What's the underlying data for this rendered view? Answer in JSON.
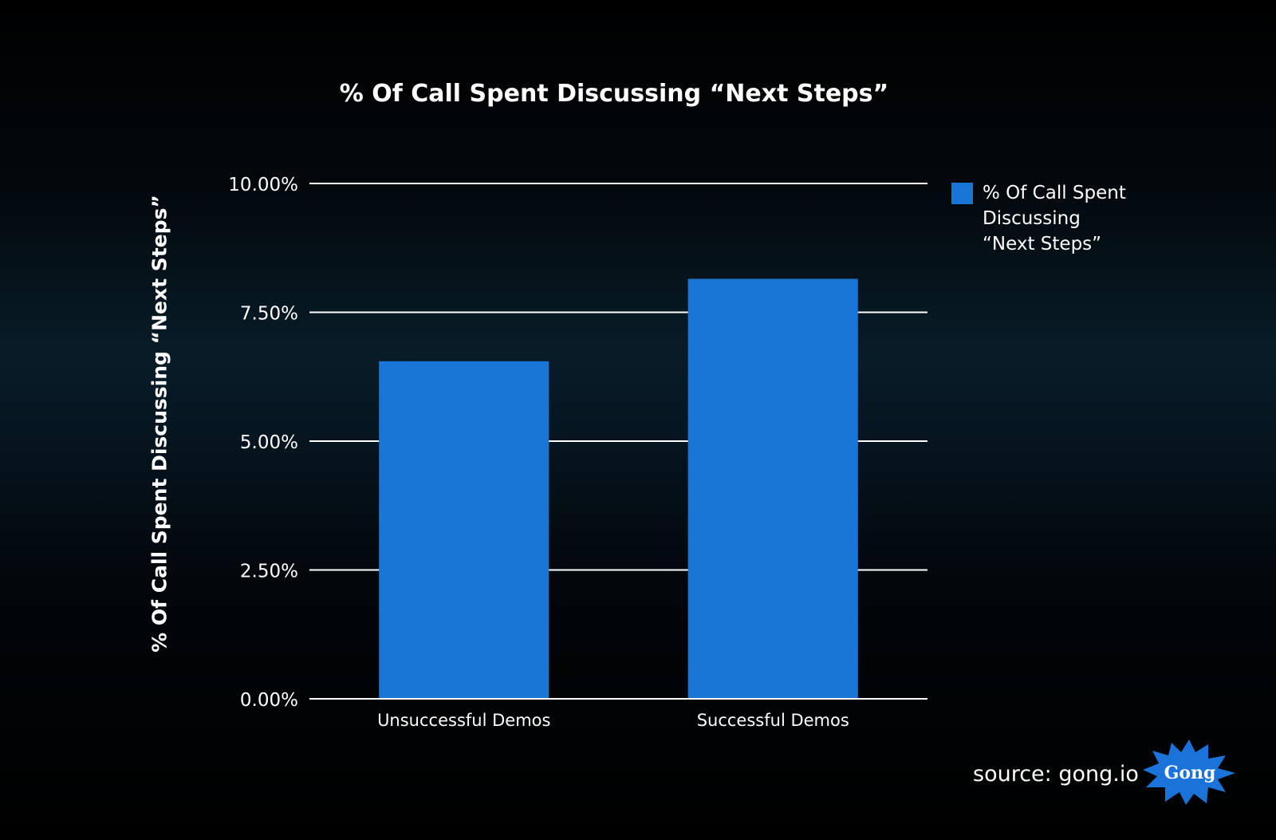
{
  "chart_data": {
    "type": "bar",
    "title": "% Of Call Spent Discussing “Next Steps”",
    "ylabel": "% Of Call Spent Discussing “Next Steps”",
    "xlabel": "",
    "categories": [
      "Unsuccessful Demos",
      "Successful Demos"
    ],
    "series": [
      {
        "name": "% Of Call Spent Discussing “Next Steps”",
        "values": [
          6.55,
          8.15
        ]
      }
    ],
    "ylim": [
      0,
      10
    ],
    "yticks": [
      0,
      2.5,
      5,
      7.5,
      10
    ],
    "ytick_labels": [
      "0.00%",
      "2.50%",
      "5.00%",
      "7.50%",
      "10.00%"
    ],
    "grid": true,
    "legend_position": "right"
  },
  "colors": {
    "bar": "#1976d6",
    "gridline": "#ffffff",
    "logo": "#1a73d9"
  },
  "legend": {
    "label_line1": "% Of Call Spent Discussing",
    "label_line2": "“Next Steps”"
  },
  "footer": {
    "source_text": "source: gong.io",
    "logo_text": "Gong"
  }
}
